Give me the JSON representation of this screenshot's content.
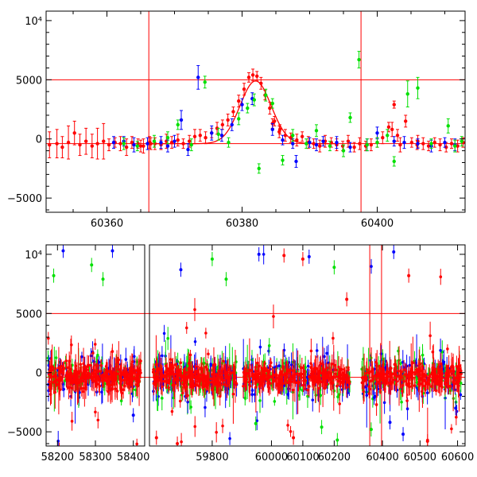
{
  "colors": {
    "blue": "#0000ff",
    "green": "#00e000",
    "red": "#ff0000",
    "reference_lines": "#ff0000",
    "axes": "#000000"
  },
  "chart_data": [
    {
      "type": "scatter",
      "title": "",
      "xlabel": "",
      "ylabel": "",
      "xlim": [
        60351,
        60413
      ],
      "ylim": [
        -6200,
        10800
      ],
      "xticks": [
        60360,
        60380,
        60400
      ],
      "xtick_labels": [
        "60360",
        "60380",
        "60400"
      ],
      "yticks": [
        -5000,
        0,
        5000,
        10000
      ],
      "ytick_labels": [
        "−5000",
        "0",
        "5000",
        "10⁴"
      ],
      "hlines": [
        5000,
        -400
      ],
      "vlines": [
        60366.2,
        60397.6
      ],
      "model_curve": {
        "color": "red",
        "baseline": -400,
        "peak_x": 60382,
        "peak_y": 4900,
        "width": 2.3,
        "x_range": [
          60366,
          60394
        ]
      },
      "error_bars": "yes",
      "series": [
        {
          "color": "red",
          "x": [
            60351.5,
            60352.6,
            60353.4,
            60354.3,
            60355.2,
            60356.0,
            60356.9,
            60357.8,
            60358.6,
            60359.5,
            60360.3,
            60361.2,
            60362.0,
            60362.9,
            60363.7,
            60364.6,
            60365.4,
            60366.3,
            60367.1,
            60368.0,
            60368.8,
            60369.6,
            60370.5,
            60371.3,
            60372.2,
            60373.0,
            60373.8,
            60374.6,
            60375.5,
            60376.3,
            60377.1,
            60377.9,
            60378.7,
            60379.5,
            60380.3,
            60381.0,
            60381.6,
            60382.2,
            60382.8,
            60383.4,
            60384.1,
            60384.8,
            60385.6,
            60386.4,
            60387.2,
            60388.1,
            60388.9,
            60389.8,
            60390.6,
            60391.5,
            60392.3,
            60393.2,
            60394.0,
            60394.9,
            60395.7,
            60396.6,
            60397.4,
            60398.3,
            60399.1,
            60400.0,
            60400.8,
            60401.7,
            60402.5,
            60403.4,
            60404.2,
            60405.1,
            60405.9,
            60406.8,
            60407.6,
            60408.5,
            60409.3,
            60410.2,
            60411.0,
            60411.9,
            60412.7,
            60365.0,
            60366.5,
            60384.5,
            60385.5,
            60402.2,
            60403.0,
            60406.0
          ],
          "y": [
            -500,
            -400,
            -700,
            -300,
            500,
            -500,
            -200,
            -600,
            -400,
            -200,
            -500,
            -300,
            -400,
            -700,
            -300,
            -400,
            -600,
            -300,
            -400,
            -500,
            -200,
            -300,
            -100,
            -400,
            -200,
            200,
            300,
            100,
            500,
            900,
            1200,
            1600,
            2300,
            3200,
            4200,
            5200,
            5400,
            5300,
            4700,
            3700,
            2600,
            1500,
            800,
            300,
            100,
            -100,
            200,
            -300,
            -400,
            -600,
            -200,
            -300,
            -500,
            -600,
            -200,
            -700,
            -400,
            -600,
            -500,
            -300,
            100,
            1000,
            2900,
            -500,
            1500,
            -300,
            -500,
            -400,
            -600,
            -300,
            -500,
            -700,
            -400,
            -600,
            -300,
            -600,
            -400,
            1300,
            600,
            800,
            300,
            -200
          ],
          "err": [
            1100,
            1200,
            900,
            1400,
            1000,
            900,
            1100,
            1000,
            1300,
            1500,
            500,
            400,
            600,
            700,
            500,
            400,
            600,
            500,
            500,
            400,
            600,
            500,
            500,
            400,
            500,
            600,
            500,
            500,
            400,
            500,
            400,
            500,
            400,
            500,
            500,
            400,
            500,
            400,
            500,
            400,
            500,
            400,
            400,
            500,
            400,
            500,
            400,
            500,
            400,
            500,
            500,
            400,
            500,
            400,
            500,
            400,
            500,
            400,
            500,
            400,
            500,
            400,
            300,
            600,
            500,
            400,
            400,
            500,
            400,
            400,
            500,
            400,
            400,
            500,
            400,
            500,
            500,
            400,
            500,
            600,
            500,
            500
          ]
        },
        {
          "color": "blue",
          "x": [
            60361.0,
            60362.5,
            60364.0,
            60366.0,
            60368.0,
            60369.0,
            60371.0,
            60372.0,
            60373.5,
            60375.5,
            60377.0,
            60378.5,
            60380.0,
            60384.5,
            60386.0,
            60388.0,
            60390.0,
            60391.0,
            60392.0,
            60394.0,
            60396.0,
            60398.5,
            60400.0,
            60402.5,
            60404.0,
            60406.0,
            60408.0,
            60410.0,
            60411.5,
            60387.5,
            60370.0,
            60381.5
          ],
          "y": [
            -300,
            -200,
            -500,
            -400,
            -300,
            -600,
            1600,
            -900,
            5200,
            500,
            300,
            1200,
            2900,
            800,
            -100,
            -1900,
            -300,
            -500,
            -200,
            -300,
            -700,
            -500,
            500,
            -200,
            -300,
            -400,
            -600,
            -300,
            -500,
            -400,
            -200,
            3400
          ],
          "err": [
            500,
            400,
            600,
            500,
            500,
            500,
            800,
            500,
            1000,
            600,
            500,
            500,
            500,
            500,
            400,
            500,
            400,
            500,
            400,
            500,
            400,
            500,
            500,
            400,
            500,
            400,
            500,
            400,
            500,
            400,
            500,
            500
          ]
        },
        {
          "color": "green",
          "x": [
            60362.5,
            60364.5,
            60367.0,
            60369.0,
            60370.5,
            60372.5,
            60374.5,
            60376.5,
            60378.0,
            60379.5,
            60380.8,
            60381.8,
            60382.5,
            60383.5,
            60384.5,
            60386.0,
            60387.5,
            60389.5,
            60391.0,
            60393.0,
            60395.0,
            60396.0,
            60397.3,
            60398.5,
            60400.0,
            60401.5,
            60402.5,
            60404.5,
            60406.0,
            60408.0,
            60410.5,
            60411.5,
            60412.5
          ],
          "y": [
            -400,
            -600,
            -200,
            100,
            1200,
            -500,
            4800,
            400,
            -300,
            1700,
            2600,
            3300,
            -2500,
            3700,
            3000,
            -1800,
            300,
            -400,
            700,
            -600,
            -1000,
            1800,
            6700,
            -500,
            -300,
            300,
            -1900,
            3800,
            4300,
            -400,
            1100,
            -600,
            -200
          ],
          "err": [
            500,
            400,
            500,
            500,
            400,
            500,
            500,
            500,
            400,
            500,
            400,
            500,
            400,
            500,
            400,
            400,
            500,
            400,
            500,
            400,
            500,
            400,
            700,
            500,
            400,
            500,
            400,
            1100,
            900,
            400,
            600,
            500,
            400
          ]
        }
      ]
    },
    {
      "type": "scatter",
      "title": "",
      "xlabel": "",
      "ylabel": "",
      "broken_x_axis": true,
      "segments": [
        {
          "xlim": [
            58170,
            58430
          ],
          "xticks": [
            58200,
            58300,
            58400
          ],
          "xtick_labels": [
            "58200",
            "58300",
            "58400"
          ]
        },
        {
          "xlim": [
            59620,
            59880
          ],
          "xticks": [
            59800
          ],
          "xtick_labels": [
            "59800"
          ]
        },
        {
          "xlim": [
            59900,
            60270
          ],
          "xticks": [
            60000,
            60100,
            60200
          ],
          "xtick_labels": [
            "60000",
            "60100",
            "60200"
          ]
        },
        {
          "xlim": [
            60330,
            60620
          ],
          "xticks": [
            60400,
            60500,
            60600
          ],
          "xtick_labels": [
            "60400",
            "60500",
            "60600"
          ]
        }
      ],
      "ylim": [
        -6200,
        10800
      ],
      "yticks": [
        -5000,
        0,
        5000,
        10000
      ],
      "ytick_labels": [
        "−5000",
        "0",
        "5000",
        "10⁴"
      ],
      "hlines": [
        5000,
        -400
      ],
      "vlines": [
        60366.2,
        60397.6
      ],
      "description_of_series": "dense clusters of red, green and blue photometry points with error bars around a baseline of about -400",
      "clusters": [
        {
          "x_range": [
            58175,
            58420
          ],
          "center": -400,
          "spread": 900
        },
        {
          "x_range": [
            59630,
            59870
          ],
          "center": -400,
          "spread": 900
        },
        {
          "x_range": [
            59910,
            60250
          ],
          "center": -400,
          "spread": 900
        },
        {
          "x_range": [
            60345,
            60610
          ],
          "center": -400,
          "spread": 900
        }
      ],
      "outliers": [
        {
          "color": "blue",
          "x": 58215,
          "y": 10300
        },
        {
          "color": "green",
          "x": 58190,
          "y": 8200
        },
        {
          "color": "green",
          "x": 58290,
          "y": 9100
        },
        {
          "color": "green",
          "x": 58320,
          "y": 7900
        },
        {
          "color": "blue",
          "x": 58345,
          "y": 10300
        },
        {
          "color": "green",
          "x": 59800,
          "y": 9600
        },
        {
          "color": "blue",
          "x": 59710,
          "y": 8700
        },
        {
          "color": "green",
          "x": 59840,
          "y": 7900
        },
        {
          "color": "blue",
          "x": 59960,
          "y": 10000
        },
        {
          "color": "red",
          "x": 60040,
          "y": 9900
        },
        {
          "color": "red",
          "x": 60100,
          "y": 9600
        },
        {
          "color": "blue",
          "x": 60120,
          "y": 9800
        },
        {
          "color": "green",
          "x": 60200,
          "y": 8900
        },
        {
          "color": "blue",
          "x": 60430,
          "y": 10200
        },
        {
          "color": "red",
          "x": 60470,
          "y": 8200
        },
        {
          "color": "red",
          "x": 60240,
          "y": 6200
        },
        {
          "color": "blue",
          "x": 58400,
          "y": -3600
        },
        {
          "color": "red",
          "x": 59640,
          "y": -5500
        },
        {
          "color": "red",
          "x": 59700,
          "y": -6000
        },
        {
          "color": "green",
          "x": 59950,
          "y": -4300
        },
        {
          "color": "red",
          "x": 60070,
          "y": -5500
        },
        {
          "color": "green",
          "x": 60210,
          "y": -5700
        },
        {
          "color": "blue",
          "x": 60455,
          "y": -5200
        },
        {
          "color": "blue",
          "x": 60595,
          "y": -3000
        },
        {
          "color": "red",
          "x": 60520,
          "y": -5800
        },
        {
          "color": "green",
          "x": 60370,
          "y": -4800
        },
        {
          "color": "blue",
          "x": 60420,
          "y": -4200
        },
        {
          "color": "green",
          "x": 60160,
          "y": -4600
        }
      ]
    }
  ]
}
